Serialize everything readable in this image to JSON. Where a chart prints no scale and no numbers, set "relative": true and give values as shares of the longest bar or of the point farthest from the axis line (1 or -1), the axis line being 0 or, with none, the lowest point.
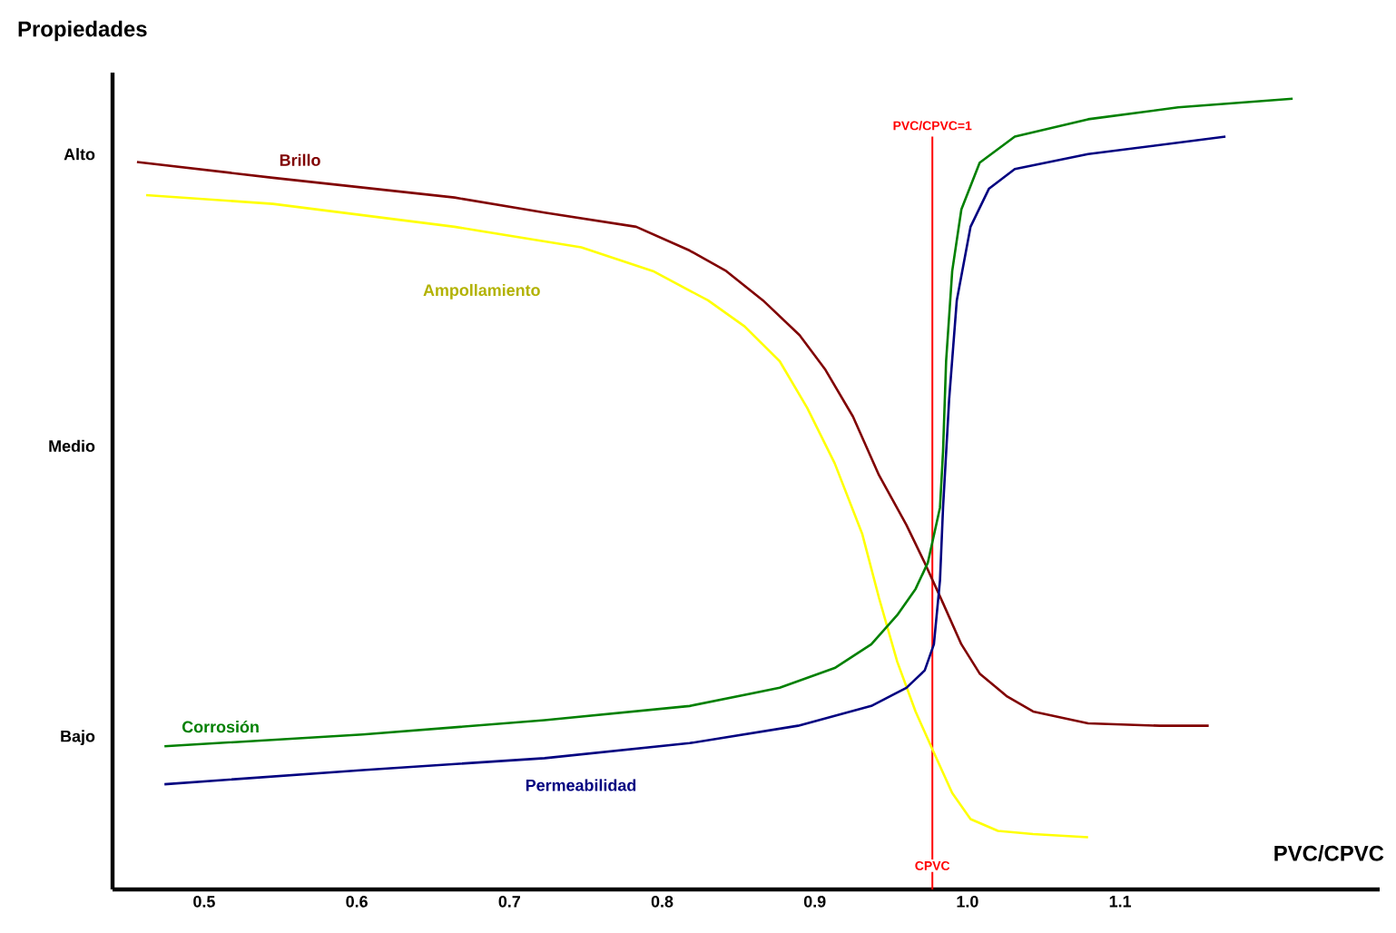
{
  "chart_data": {
    "type": "line",
    "title": "Propiedades",
    "xlabel": "PVC/CPVC",
    "relative": true,
    "xlim": [
      0.44,
      1.27
    ],
    "xticks": [
      0.5,
      0.6,
      0.7,
      0.8,
      0.9,
      {
        "value": 1.0,
        "label": "1.0"
      },
      1.1
    ],
    "grid": false,
    "marker": "none",
    "line_style": "solid",
    "series": [
      {
        "name": "Brillo",
        "color": "#800000",
        "x": [
          0.456,
          0.545,
          0.664,
          0.723,
          0.783,
          0.818,
          0.842,
          0.866,
          0.89,
          0.907,
          0.925,
          0.942,
          0.96,
          0.972,
          0.984,
          0.996,
          1.008,
          1.026,
          1.043,
          1.079,
          1.126,
          1.158
        ],
        "values": [
          0.92,
          0.9,
          0.875,
          0.856,
          0.838,
          0.808,
          0.782,
          0.745,
          0.701,
          0.657,
          0.598,
          0.524,
          0.461,
          0.413,
          0.362,
          0.31,
          0.273,
          0.244,
          0.225,
          0.21,
          0.207,
          0.207
        ]
      },
      {
        "name": "Ampollamiento",
        "color": "#ffff00",
        "x": [
          0.462,
          0.545,
          0.664,
          0.747,
          0.794,
          0.83,
          0.854,
          0.877,
          0.895,
          0.913,
          0.931,
          0.942,
          0.954,
          0.966,
          0.978,
          0.99,
          1.002,
          1.02,
          1.043,
          1.079
        ],
        "values": [
          0.878,
          0.867,
          0.838,
          0.812,
          0.782,
          0.745,
          0.712,
          0.668,
          0.609,
          0.539,
          0.45,
          0.369,
          0.288,
          0.225,
          0.173,
          0.122,
          0.089,
          0.074,
          0.07,
          0.066
        ]
      },
      {
        "name": "Corrosión",
        "color": "#008000",
        "x": [
          0.474,
          0.604,
          0.723,
          0.818,
          0.877,
          0.913,
          0.937,
          0.954,
          0.966,
          0.974,
          0.982,
          0.984,
          0.986,
          0.99,
          0.996,
          1.008,
          1.031,
          1.079,
          1.138,
          1.213
        ],
        "values": [
          0.181,
          0.196,
          0.214,
          0.232,
          0.255,
          0.28,
          0.31,
          0.347,
          0.38,
          0.413,
          0.483,
          0.554,
          0.668,
          0.782,
          0.86,
          0.919,
          0.952,
          0.974,
          0.989,
          1
        ]
      },
      {
        "name": "Permeabilidad",
        "color": "#000080",
        "x": [
          0.474,
          0.604,
          0.723,
          0.818,
          0.889,
          0.937,
          0.96,
          0.972,
          0.978,
          0.982,
          0.984,
          0.988,
          0.993,
          1.002,
          1.014,
          1.031,
          1.079,
          1.169
        ],
        "values": [
          0.133,
          0.151,
          0.166,
          0.185,
          0.207,
          0.232,
          0.255,
          0.277,
          0.31,
          0.391,
          0.483,
          0.62,
          0.745,
          0.838,
          0.886,
          0.911,
          0.93,
          0.952
        ]
      }
    ],
    "ref_lines": [
      {
        "axis": "x",
        "value": 0.977,
        "label": "PVC/CPVC=1",
        "color": "#ff0000"
      }
    ],
    "annotations": [
      {
        "text": "CPVC",
        "x": 0.977,
        "y": 0.03
      },
      "Alto",
      "Medio",
      "Bajo"
    ]
  }
}
